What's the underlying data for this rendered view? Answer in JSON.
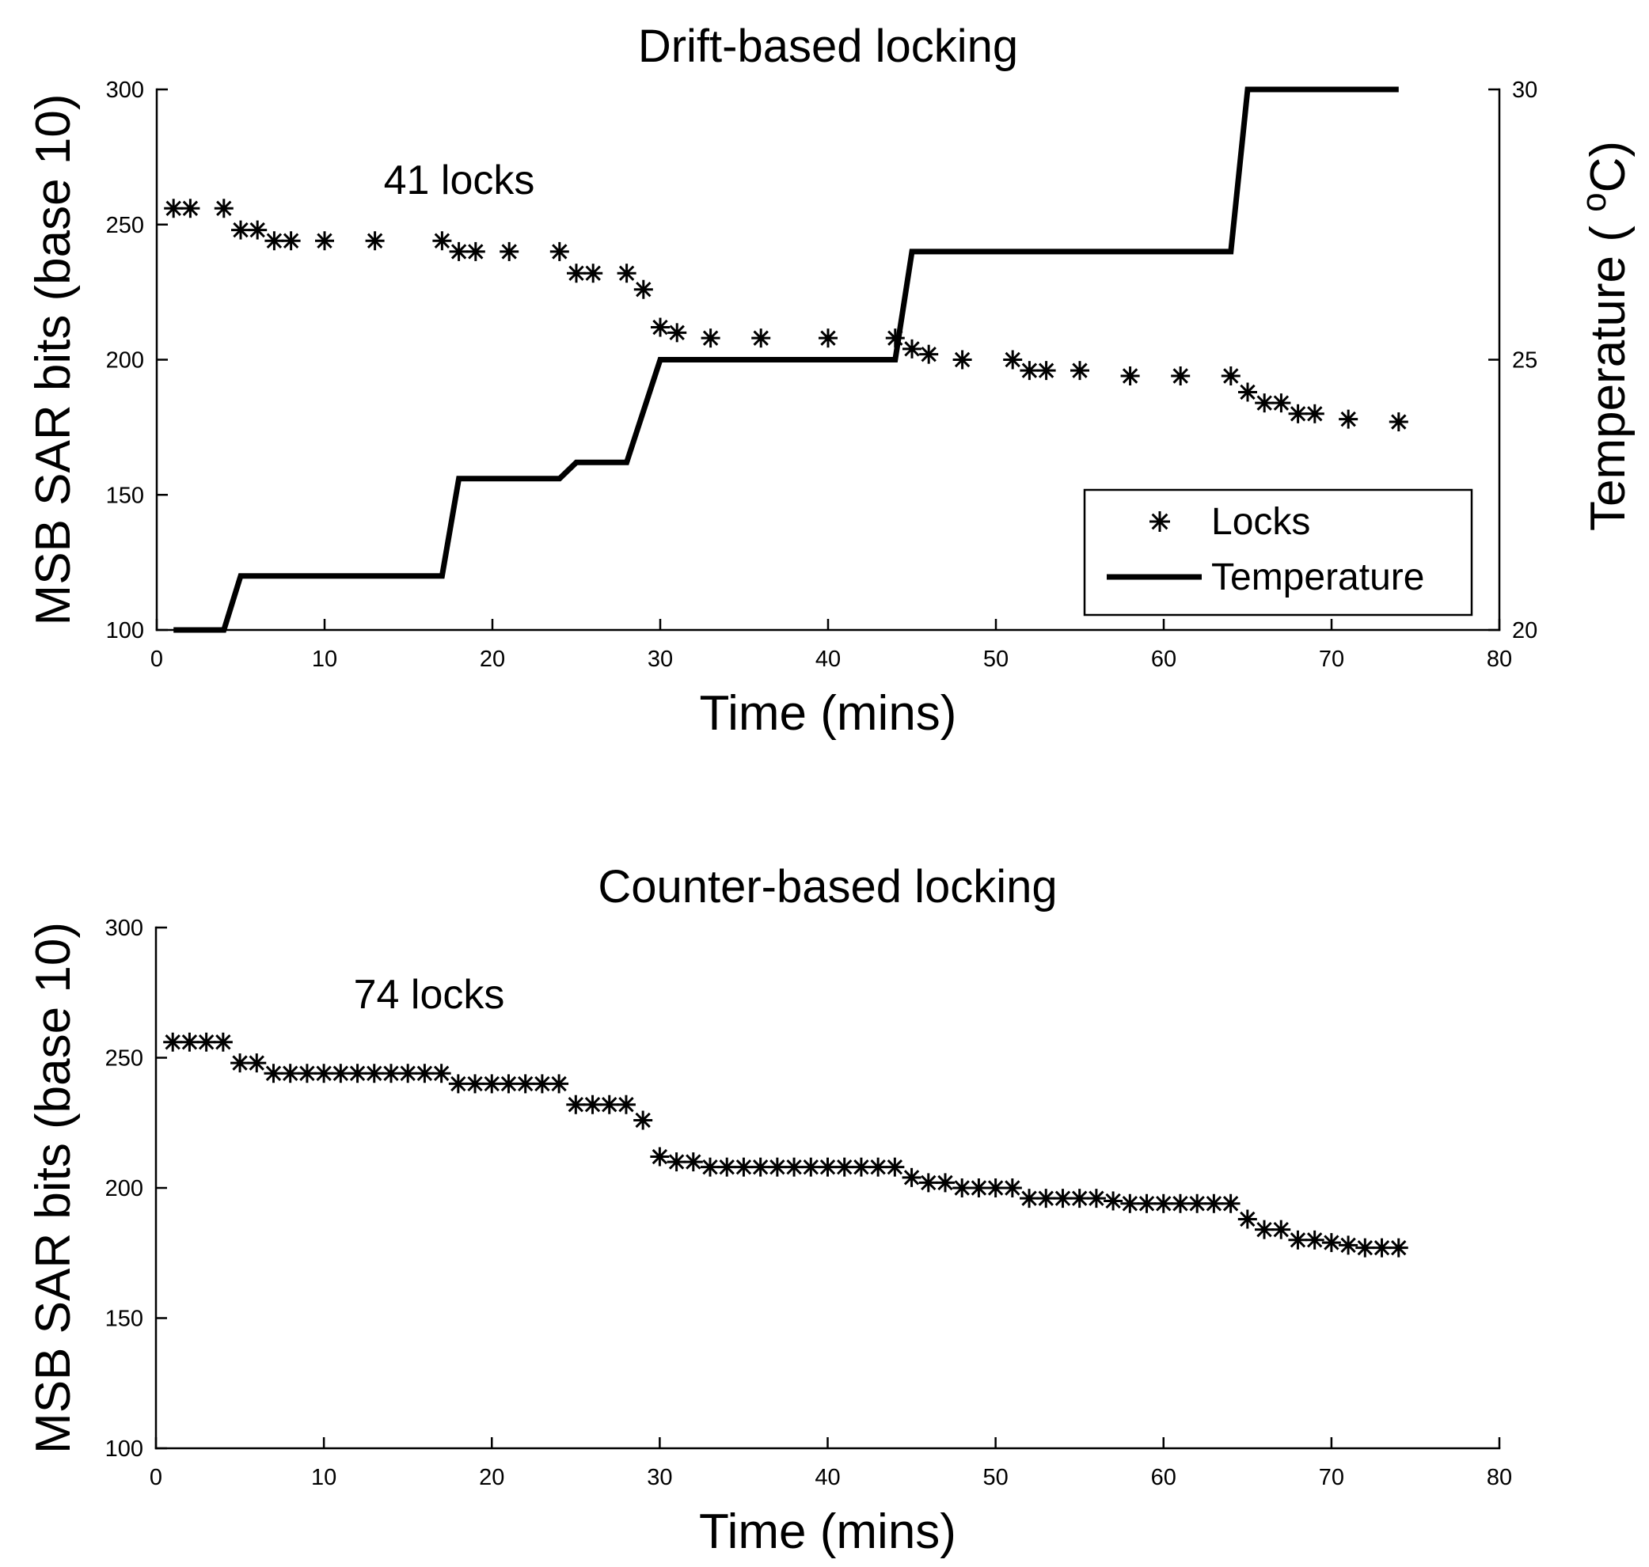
{
  "chart_data": [
    {
      "id": "drift",
      "type": "scatter+line",
      "title": "Drift-based locking",
      "xlabel": "Time (mins)",
      "ylabel": "MSB SAR bits (base 10)",
      "ylabel_right": "Temperature ( °C)",
      "ylabel_right_parts": {
        "prefix": "Temperature ( ",
        "superscript": "o",
        "unit": "C)"
      },
      "annotation": "41 locks",
      "xlim": [
        0,
        80
      ],
      "ylim": [
        100,
        300
      ],
      "ylim_right": [
        20,
        30
      ],
      "xticks": [
        0,
        10,
        20,
        30,
        40,
        50,
        60,
        70,
        80
      ],
      "yticks": [
        100,
        150,
        200,
        250,
        300
      ],
      "yticks_right": [
        20,
        25,
        30
      ],
      "legend": {
        "placement": "bottom-right",
        "entries": [
          "Locks",
          "Temperature"
        ]
      },
      "series": [
        {
          "name": "Locks",
          "kind": "markers",
          "marker": "asterisk",
          "x": [
            1,
            2,
            4,
            5,
            6,
            7,
            8,
            10,
            13,
            17,
            18,
            19,
            21,
            24,
            25,
            26,
            28,
            29,
            30,
            31,
            33,
            36,
            40,
            44,
            45,
            46,
            48,
            51,
            52,
            53,
            55,
            58,
            61,
            64,
            65,
            66,
            67,
            68,
            69,
            71,
            74
          ],
          "y": [
            256,
            256,
            256,
            248,
            248,
            244,
            244,
            244,
            244,
            244,
            240,
            240,
            240,
            240,
            232,
            232,
            232,
            226,
            212,
            210,
            208,
            208,
            208,
            208,
            204,
            202,
            200,
            200,
            196,
            196,
            196,
            194,
            194,
            194,
            188,
            184,
            184,
            180,
            180,
            178,
            177
          ]
        },
        {
          "name": "Temperature",
          "kind": "line",
          "axis": "right",
          "x": [
            1,
            4,
            5,
            17,
            18,
            24,
            25,
            28,
            30,
            44,
            45,
            64,
            65,
            74
          ],
          "y": [
            20,
            20,
            21,
            21,
            22.8,
            22.8,
            23.1,
            23.1,
            25,
            25,
            27,
            27,
            30,
            30
          ]
        }
      ]
    },
    {
      "id": "counter",
      "type": "scatter",
      "title": "Counter-based locking",
      "xlabel": "Time (mins)",
      "ylabel": "MSB SAR bits (base 10)",
      "annotation": "74 locks",
      "xlim": [
        0,
        80
      ],
      "ylim": [
        100,
        300
      ],
      "xticks": [
        0,
        10,
        20,
        30,
        40,
        50,
        60,
        70,
        80
      ],
      "yticks": [
        100,
        150,
        200,
        250,
        300
      ],
      "series": [
        {
          "name": "Locks",
          "kind": "markers",
          "marker": "asterisk",
          "x": [
            1,
            2,
            3,
            4,
            5,
            6,
            7,
            8,
            9,
            10,
            11,
            12,
            13,
            14,
            15,
            16,
            17,
            18,
            19,
            20,
            21,
            22,
            23,
            24,
            25,
            26,
            27,
            28,
            29,
            30,
            31,
            32,
            33,
            34,
            35,
            36,
            37,
            38,
            39,
            40,
            41,
            42,
            43,
            44,
            45,
            46,
            47,
            48,
            49,
            50,
            51,
            52,
            53,
            54,
            55,
            56,
            57,
            58,
            59,
            60,
            61,
            62,
            63,
            64,
            65,
            66,
            67,
            68,
            69,
            70,
            71,
            72,
            73,
            74
          ],
          "y": [
            256,
            256,
            256,
            256,
            248,
            248,
            244,
            244,
            244,
            244,
            244,
            244,
            244,
            244,
            244,
            244,
            244,
            240,
            240,
            240,
            240,
            240,
            240,
            240,
            232,
            232,
            232,
            232,
            226,
            212,
            210,
            210,
            208,
            208,
            208,
            208,
            208,
            208,
            208,
            208,
            208,
            208,
            208,
            208,
            204,
            202,
            202,
            200,
            200,
            200,
            200,
            196,
            196,
            196,
            196,
            196,
            195,
            194,
            194,
            194,
            194,
            194,
            194,
            194,
            188,
            184,
            184,
            180,
            180,
            179,
            178,
            177,
            177,
            177
          ]
        }
      ]
    }
  ]
}
